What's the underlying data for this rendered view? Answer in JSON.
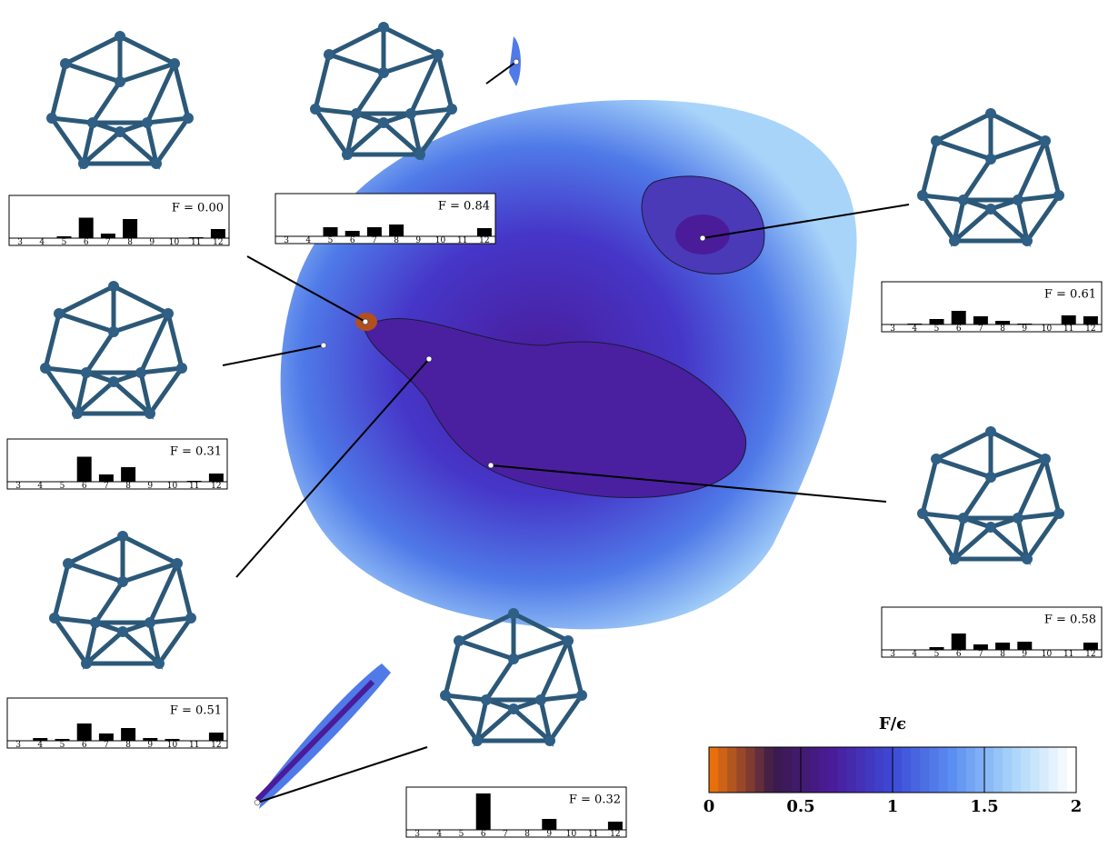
{
  "chart_data": [
    {
      "type": "bar",
      "title": "F = 0.00",
      "categories": [
        "3",
        "4",
        "5",
        "6",
        "7",
        "8",
        "9",
        "10",
        "11",
        "12"
      ],
      "values": [
        0,
        0,
        0.04,
        0.45,
        0.1,
        0.42,
        0,
        0,
        0.02,
        0.2
      ],
      "color": "#000000"
    },
    {
      "type": "bar",
      "title": "F = 0.84",
      "categories": [
        "3",
        "4",
        "5",
        "6",
        "7",
        "8",
        "9",
        "10",
        "11",
        "12"
      ],
      "values": [
        0,
        0,
        0.2,
        0.12,
        0.2,
        0.26,
        0,
        0,
        0,
        0.18
      ],
      "color": "#000000"
    },
    {
      "type": "bar",
      "title": "F = 0.61",
      "categories": [
        "3",
        "4",
        "5",
        "6",
        "7",
        "8",
        "9",
        "10",
        "11",
        "12"
      ],
      "values": [
        0,
        0.02,
        0.12,
        0.3,
        0.18,
        0.08,
        0.02,
        0,
        0.2,
        0.18
      ],
      "color": "#000000"
    },
    {
      "type": "bar",
      "title": "F = 0.31",
      "categories": [
        "3",
        "4",
        "5",
        "6",
        "7",
        "8",
        "9",
        "10",
        "11",
        "12"
      ],
      "values": [
        0,
        0,
        0,
        0.55,
        0.16,
        0.32,
        0,
        0,
        0.02,
        0.18
      ],
      "color": "#000000"
    },
    {
      "type": "bar",
      "title": "F = 0.58",
      "categories": [
        "3",
        "4",
        "5",
        "6",
        "7",
        "8",
        "9",
        "10",
        "11",
        "12"
      ],
      "values": [
        0,
        0,
        0.06,
        0.36,
        0.12,
        0.16,
        0.18,
        0,
        0,
        0.16
      ],
      "color": "#000000"
    },
    {
      "type": "bar",
      "title": "F = 0.51",
      "categories": [
        "3",
        "4",
        "5",
        "6",
        "7",
        "8",
        "9",
        "10",
        "11",
        "12"
      ],
      "values": [
        0,
        0.06,
        0.04,
        0.38,
        0.16,
        0.28,
        0.06,
        0.04,
        0,
        0.18
      ],
      "color": "#000000"
    },
    {
      "type": "bar",
      "title": "F = 0.32",
      "categories": [
        "3",
        "4",
        "5",
        "6",
        "7",
        "8",
        "9",
        "10",
        "11",
        "12"
      ],
      "values": [
        0,
        0,
        0,
        0.8,
        0,
        0,
        0.24,
        0,
        0,
        0.18
      ],
      "color": "#000000"
    },
    {
      "type": "colorbar",
      "title": "F/ϵ",
      "xlim": [
        0,
        2
      ],
      "xticks": [
        0,
        0.5,
        1,
        1.5,
        2
      ],
      "colors": [
        "#e8700c",
        "#3a1a4a",
        "#4a1c9a",
        "#3d4ad6",
        "#5a8ef0",
        "#a8d4fa",
        "#ffffff"
      ]
    }
  ]
}
